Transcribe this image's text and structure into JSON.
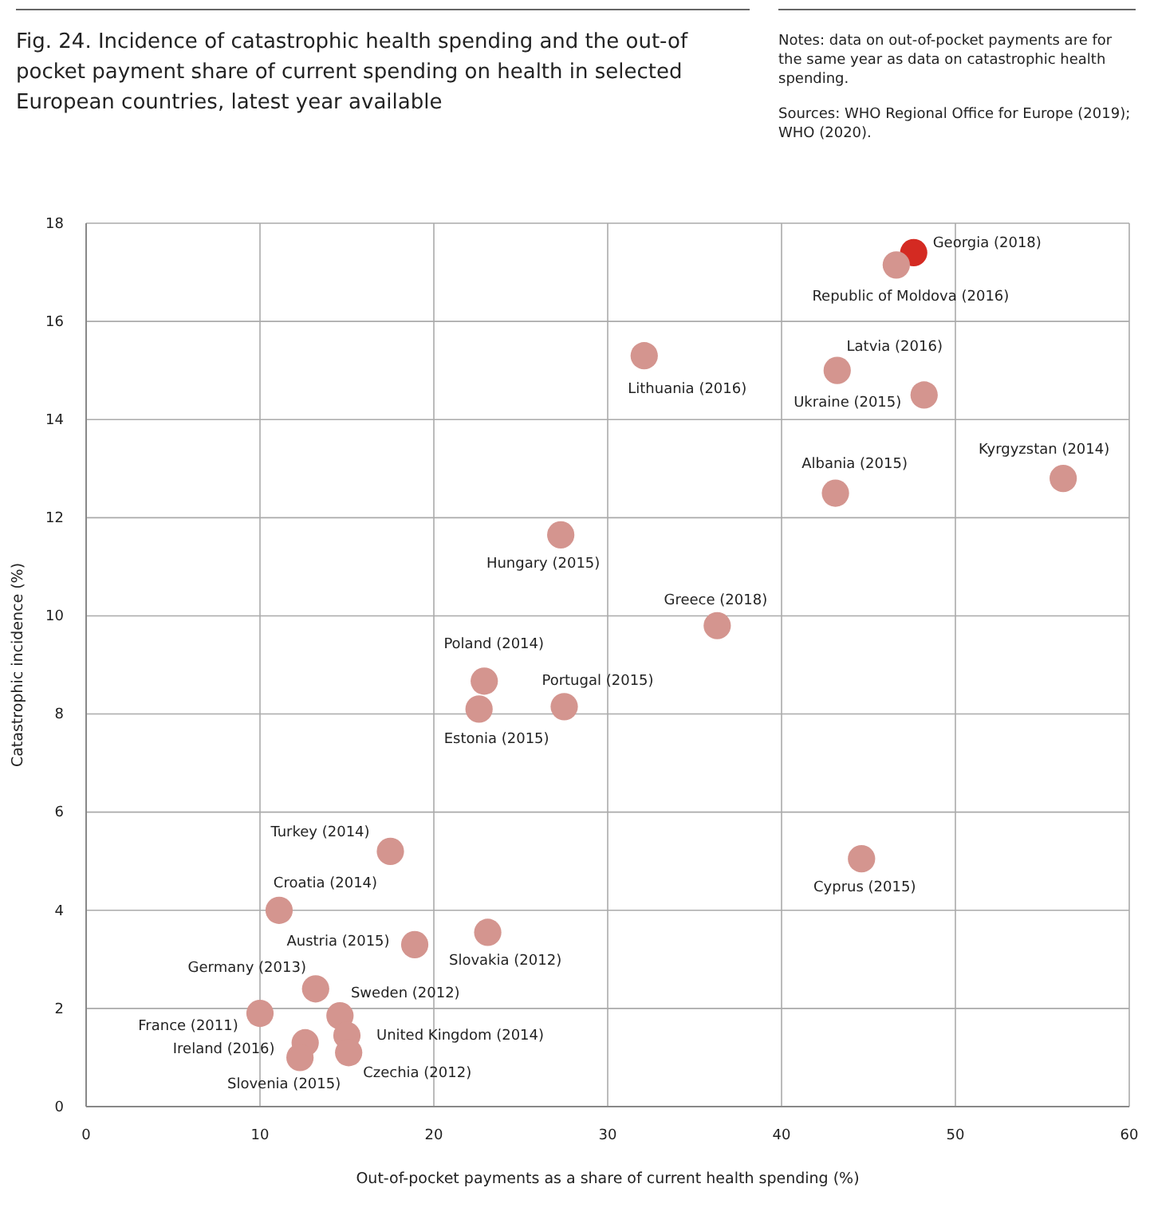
{
  "chart_data": {
    "type": "scatter",
    "title": "Fig. 24. Incidence of catastrophic health spending and the out-of pocket payment share of current spending on health in selected European countries, latest year available",
    "xlabel": "Out-of-pocket payments as a share of current health spending (%)",
    "ylabel": "Catastrophic incidence (%)",
    "x": [
      47.6,
      46.6,
      32.1,
      43.2,
      48.2,
      43.1,
      56.2,
      27.3,
      36.3,
      22.9,
      22.6,
      27.5,
      17.5,
      44.6,
      11.1,
      18.9,
      23.1,
      13.2,
      10.0,
      14.6,
      15.0,
      15.1,
      12.6,
      12.3
    ],
    "values": [
      17.4,
      17.15,
      15.3,
      15.0,
      14.5,
      12.5,
      12.8,
      11.65,
      9.8,
      8.67,
      8.1,
      8.15,
      5.2,
      5.05,
      4.0,
      3.3,
      3.55,
      2.4,
      1.9,
      1.85,
      1.45,
      1.1,
      1.3,
      1.0
    ],
    "colors": [
      "#d42a22",
      "#d4958f",
      "#d4958f",
      "#d4958f",
      "#d4958f",
      "#d4958f",
      "#d4958f",
      "#d4958f",
      "#d4958f",
      "#d4958f",
      "#d4958f",
      "#d4958f",
      "#d4958f",
      "#d4958f",
      "#d4958f",
      "#d4958f",
      "#d4958f",
      "#d4958f",
      "#d4958f",
      "#d4958f",
      "#d4958f",
      "#d4958f",
      "#d4958f",
      "#d4958f"
    ],
    "marker": "circle",
    "grid": true,
    "xlim": [
      0,
      60
    ],
    "xticks": [
      0,
      10,
      20,
      30,
      40,
      50,
      60
    ],
    "ylim": [
      0,
      18
    ],
    "yticks": [
      0,
      2,
      4,
      6,
      8,
      10,
      12,
      14,
      16,
      18
    ],
    "annotations": [
      {
        "text": "Georgia (2018)",
        "x": 47.6,
        "y": 17.4
      },
      {
        "text": "Republic of Moldova (2016)",
        "x": 46.6,
        "y": 17.15
      },
      {
        "text": "Lithuania (2016)",
        "x": 32.1,
        "y": 15.3
      },
      {
        "text": "Latvia (2016)",
        "x": 43.2,
        "y": 15.0
      },
      {
        "text": "Ukraine (2015)",
        "x": 48.2,
        "y": 14.5
      },
      {
        "text": "Albania (2015)",
        "x": 43.1,
        "y": 12.5
      },
      {
        "text": "Kyrgyzstan (2014)",
        "x": 56.2,
        "y": 12.8
      },
      {
        "text": "Hungary (2015)",
        "x": 27.3,
        "y": 11.65
      },
      {
        "text": "Greece (2018)",
        "x": 36.3,
        "y": 9.8
      },
      {
        "text": "Poland (2014)",
        "x": 22.9,
        "y": 8.67
      },
      {
        "text": "Estonia (2015)",
        "x": 22.6,
        "y": 8.1
      },
      {
        "text": "Portugal (2015)",
        "x": 27.5,
        "y": 8.15
      },
      {
        "text": "Turkey (2014)",
        "x": 17.5,
        "y": 5.2
      },
      {
        "text": "Cyprus (2015)",
        "x": 44.6,
        "y": 5.05
      },
      {
        "text": "Croatia (2014)",
        "x": 11.1,
        "y": 4.0
      },
      {
        "text": "Austria (2015)",
        "x": 18.9,
        "y": 3.3
      },
      {
        "text": "Slovakia (2012)",
        "x": 23.1,
        "y": 3.55
      },
      {
        "text": "Germany (2013)",
        "x": 13.2,
        "y": 2.4
      },
      {
        "text": "France (2011)",
        "x": 10.0,
        "y": 1.9
      },
      {
        "text": "Sweden (2012)",
        "x": 14.6,
        "y": 1.85
      },
      {
        "text": "United Kingdom (2014)",
        "x": 15.0,
        "y": 1.45
      },
      {
        "text": "Czechia (2012)",
        "x": 15.1,
        "y": 1.1
      },
      {
        "text": "Ireland (2016)",
        "x": 12.6,
        "y": 1.3
      },
      {
        "text": "Slovenia (2015)",
        "x": 12.3,
        "y": 1.0
      },
      "Notes: data on out-of-pocket payments are for the same year as data on catastrophic health spending.",
      "Sources: WHO Regional Office for Europe (2019); WHO (2020)."
    ]
  }
}
